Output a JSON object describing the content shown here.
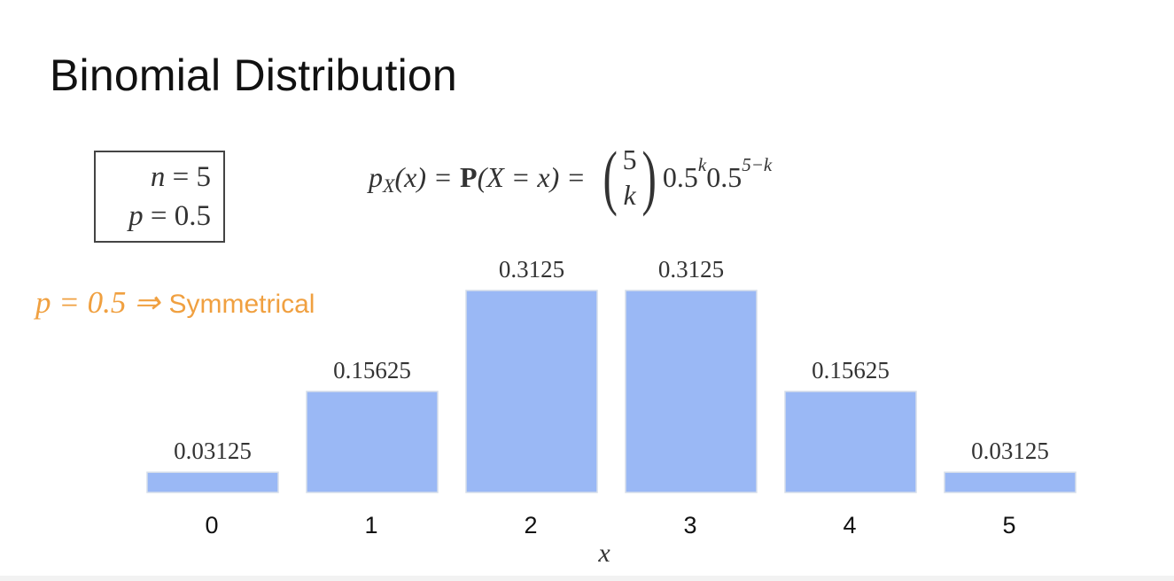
{
  "slide": {
    "title": "Binomial Distribution"
  },
  "params": {
    "n_var": "n",
    "n_eq": " = 5",
    "p_var": "p",
    "p_eq": " = 0.5"
  },
  "formula": {
    "p": "p",
    "sub": "X",
    "arg": "(x)",
    "eq1": "=",
    "P": "P",
    "event": "(X = x)",
    "eq2": "=",
    "binom_top": "5",
    "binom_bottom": "k",
    "base1": "0.5",
    "exp1": "k",
    "base2": "0.5",
    "exp2": "5−k"
  },
  "note": {
    "math": "p = 0.5 ⇒",
    "word": "Symmetrical",
    "color": "#f0a040"
  },
  "chart_data": {
    "type": "bar",
    "categories": [
      "0",
      "1",
      "2",
      "3",
      "4",
      "5"
    ],
    "values": [
      0.03125,
      0.15625,
      0.3125,
      0.3125,
      0.15625,
      0.03125
    ],
    "value_labels": [
      "0.03125",
      "0.15625",
      "0.3125",
      "0.3125",
      "0.15625",
      "0.03125"
    ],
    "xlabel": "x",
    "ylabel": "",
    "ylim": [
      0,
      0.3125
    ],
    "bar_color": "#9ab8f5",
    "grid": false,
    "legend": "none"
  }
}
